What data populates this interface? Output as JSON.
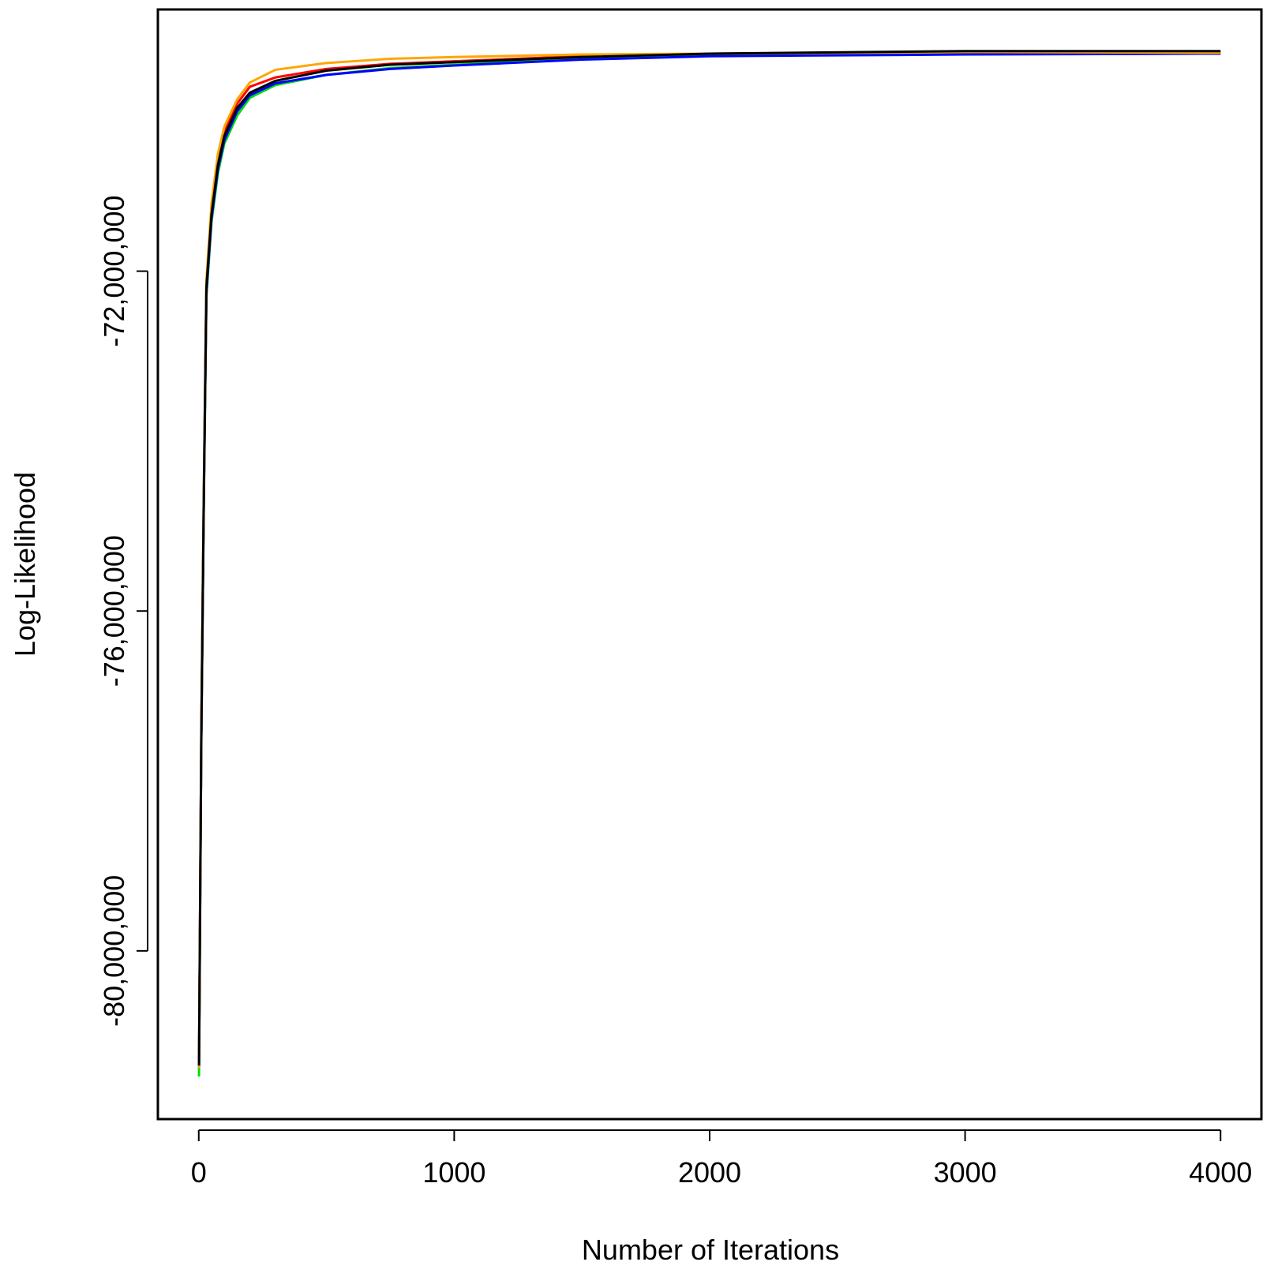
{
  "chart_data": {
    "type": "line",
    "xlabel": "Number of Iterations",
    "ylabel": "Log-Likelihood",
    "x": [
      1,
      10,
      20,
      30,
      50,
      75,
      100,
      150,
      200,
      300,
      500,
      750,
      1000,
      1500,
      2000,
      3000,
      4000
    ],
    "series": [
      {
        "name": "red",
        "color": "#ff0000",
        "values": [
          -81350000,
          -77450000,
          -74550000,
          -72150000,
          -71250000,
          -70680000,
          -70350000,
          -70030000,
          -69830000,
          -69720000,
          -69620000,
          -69560000,
          -69530000,
          -69470000,
          -69440000,
          -69420000,
          -69420000
        ]
      },
      {
        "name": "green",
        "color": "#00dd00",
        "values": [
          -81480000,
          -77550000,
          -74700000,
          -72300000,
          -71420000,
          -70850000,
          -70500000,
          -70170000,
          -69960000,
          -69810000,
          -69690000,
          -69610000,
          -69570000,
          -69500000,
          -69460000,
          -69440000,
          -69440000
        ]
      },
      {
        "name": "blue",
        "color": "#0000ff",
        "values": [
          -81380000,
          -77500000,
          -74650000,
          -72250000,
          -71380000,
          -70800000,
          -70460000,
          -70120000,
          -69930000,
          -69790000,
          -69690000,
          -69620000,
          -69580000,
          -69510000,
          -69470000,
          -69450000,
          -69440000
        ]
      },
      {
        "name": "orange",
        "color": "#ffa500",
        "values": [
          -81380000,
          -77420000,
          -74500000,
          -72100000,
          -71200000,
          -70620000,
          -70300000,
          -69980000,
          -69780000,
          -69630000,
          -69550000,
          -69500000,
          -69480000,
          -69450000,
          -69440000,
          -69420000,
          -69430000
        ]
      },
      {
        "name": "black",
        "color": "#000000",
        "values": [
          -81350000,
          -77480000,
          -74600000,
          -72190000,
          -71330000,
          -70750000,
          -70410000,
          -70080000,
          -69900000,
          -69760000,
          -69640000,
          -69570000,
          -69540000,
          -69480000,
          -69440000,
          -69410000,
          -69410000
        ]
      }
    ],
    "xlim": [
      -160,
      4160
    ],
    "ylim": [
      -81980000,
      -68920000
    ],
    "xticks": [
      0,
      1000,
      2000,
      3000,
      4000
    ],
    "yticks": [
      {
        "value": -80000000,
        "label": "-80,000,000"
      },
      {
        "value": -76000000,
        "label": "-76,000,000"
      },
      {
        "value": -72000000,
        "label": "-72,000,000"
      }
    ]
  }
}
